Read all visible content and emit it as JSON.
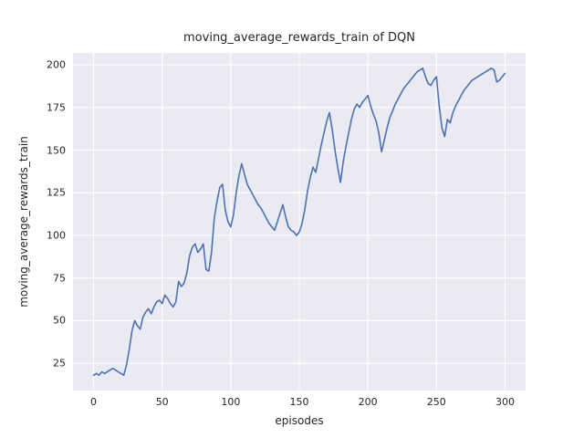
{
  "figure": {
    "background": "#ffffff",
    "text_color": "#262626"
  },
  "chart_data": {
    "type": "line",
    "title": "moving_average_rewards_train of DQN",
    "xlabel": "episodes",
    "ylabel": "moving_average_rewards_train",
    "xlim": [
      -15,
      315
    ],
    "ylim": [
      9,
      207
    ],
    "xticks": [
      0,
      50,
      100,
      150,
      200,
      250,
      300
    ],
    "yticks": [
      25,
      50,
      75,
      100,
      125,
      150,
      175,
      200
    ],
    "grid": true,
    "legend_position": "none",
    "plot_background": "#eaeaf2",
    "grid_color": "#ffffff",
    "line_color": "#4c72b0",
    "series": [
      {
        "name": "moving_average_rewards_train",
        "points": [
          [
            0,
            18
          ],
          [
            2,
            19
          ],
          [
            4,
            18
          ],
          [
            6,
            20
          ],
          [
            8,
            19
          ],
          [
            10,
            20
          ],
          [
            12,
            21
          ],
          [
            14,
            22
          ],
          [
            16,
            21
          ],
          [
            18,
            20
          ],
          [
            20,
            19
          ],
          [
            22,
            18
          ],
          [
            24,
            24
          ],
          [
            26,
            33
          ],
          [
            28,
            44
          ],
          [
            30,
            50
          ],
          [
            32,
            47
          ],
          [
            34,
            45
          ],
          [
            36,
            52
          ],
          [
            38,
            55
          ],
          [
            40,
            57
          ],
          [
            42,
            54
          ],
          [
            44,
            58
          ],
          [
            46,
            61
          ],
          [
            48,
            62
          ],
          [
            50,
            60
          ],
          [
            52,
            65
          ],
          [
            54,
            63
          ],
          [
            56,
            60
          ],
          [
            58,
            58
          ],
          [
            60,
            61
          ],
          [
            62,
            73
          ],
          [
            64,
            70
          ],
          [
            66,
            72
          ],
          [
            68,
            78
          ],
          [
            70,
            88
          ],
          [
            72,
            93
          ],
          [
            74,
            95
          ],
          [
            76,
            90
          ],
          [
            78,
            92
          ],
          [
            80,
            95
          ],
          [
            82,
            80
          ],
          [
            84,
            79
          ],
          [
            86,
            90
          ],
          [
            88,
            110
          ],
          [
            90,
            120
          ],
          [
            92,
            128
          ],
          [
            94,
            130
          ],
          [
            96,
            115
          ],
          [
            98,
            108
          ],
          [
            100,
            105
          ],
          [
            102,
            112
          ],
          [
            104,
            125
          ],
          [
            106,
            135
          ],
          [
            108,
            142
          ],
          [
            110,
            136
          ],
          [
            112,
            130
          ],
          [
            114,
            127
          ],
          [
            116,
            124
          ],
          [
            118,
            121
          ],
          [
            120,
            118
          ],
          [
            122,
            116
          ],
          [
            124,
            113
          ],
          [
            126,
            110
          ],
          [
            128,
            107
          ],
          [
            130,
            105
          ],
          [
            132,
            103
          ],
          [
            134,
            108
          ],
          [
            136,
            113
          ],
          [
            138,
            118
          ],
          [
            140,
            111
          ],
          [
            142,
            105
          ],
          [
            144,
            103
          ],
          [
            146,
            102
          ],
          [
            148,
            100
          ],
          [
            150,
            102
          ],
          [
            152,
            107
          ],
          [
            154,
            115
          ],
          [
            156,
            126
          ],
          [
            158,
            134
          ],
          [
            160,
            140
          ],
          [
            162,
            137
          ],
          [
            164,
            145
          ],
          [
            166,
            153
          ],
          [
            168,
            160
          ],
          [
            170,
            167
          ],
          [
            172,
            172
          ],
          [
            174,
            162
          ],
          [
            176,
            150
          ],
          [
            178,
            140
          ],
          [
            180,
            131
          ],
          [
            182,
            143
          ],
          [
            184,
            152
          ],
          [
            186,
            160
          ],
          [
            188,
            168
          ],
          [
            190,
            174
          ],
          [
            192,
            177
          ],
          [
            194,
            175
          ],
          [
            196,
            178
          ],
          [
            198,
            180
          ],
          [
            200,
            182
          ],
          [
            202,
            176
          ],
          [
            204,
            171
          ],
          [
            206,
            167
          ],
          [
            208,
            160
          ],
          [
            210,
            149
          ],
          [
            212,
            156
          ],
          [
            214,
            163
          ],
          [
            216,
            169
          ],
          [
            218,
            173
          ],
          [
            220,
            177
          ],
          [
            222,
            180
          ],
          [
            224,
            183
          ],
          [
            226,
            186
          ],
          [
            228,
            188
          ],
          [
            230,
            190
          ],
          [
            232,
            192
          ],
          [
            234,
            194
          ],
          [
            236,
            196
          ],
          [
            238,
            197
          ],
          [
            240,
            198
          ],
          [
            242,
            193
          ],
          [
            244,
            189
          ],
          [
            246,
            188
          ],
          [
            248,
            191
          ],
          [
            250,
            193
          ],
          [
            252,
            176
          ],
          [
            254,
            163
          ],
          [
            256,
            158
          ],
          [
            258,
            168
          ],
          [
            260,
            166
          ],
          [
            262,
            172
          ],
          [
            264,
            176
          ],
          [
            266,
            179
          ],
          [
            268,
            182
          ],
          [
            270,
            185
          ],
          [
            272,
            187
          ],
          [
            274,
            189
          ],
          [
            276,
            191
          ],
          [
            278,
            192
          ],
          [
            280,
            193
          ],
          [
            282,
            194
          ],
          [
            284,
            195
          ],
          [
            286,
            196
          ],
          [
            288,
            197
          ],
          [
            290,
            198
          ],
          [
            292,
            197
          ],
          [
            294,
            190
          ],
          [
            296,
            191
          ],
          [
            298,
            193
          ],
          [
            300,
            195
          ]
        ]
      }
    ]
  }
}
